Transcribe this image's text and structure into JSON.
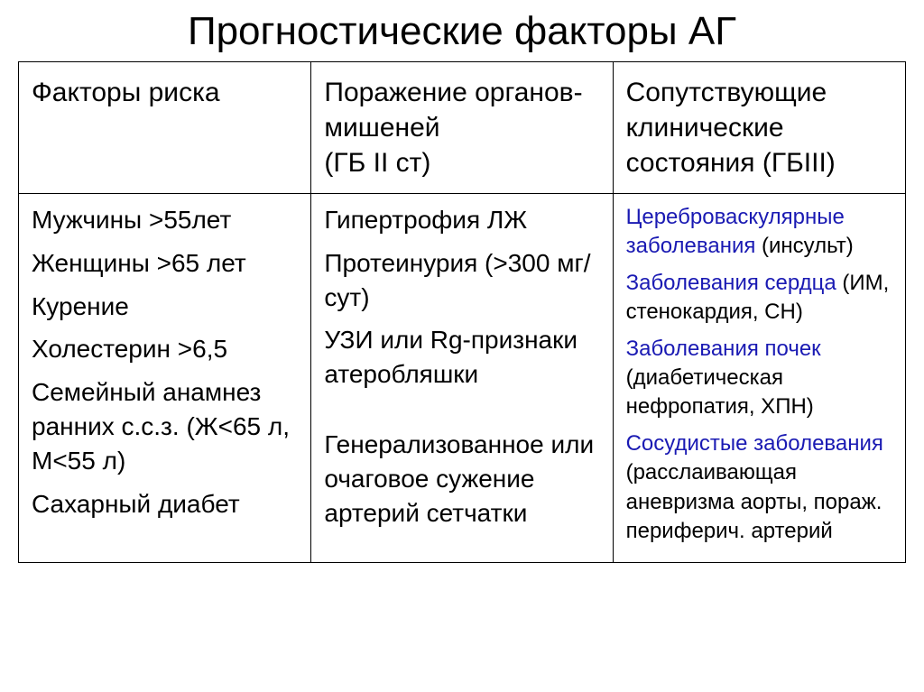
{
  "title": "Прогностические факторы АГ",
  "headers": {
    "c1": "Факторы риска",
    "c2": "Поражение органов-мишеней\n(ГБ II ст)",
    "c3": "Сопутствующие клинические состояния (ГБIII)"
  },
  "col1": {
    "items": [
      "Мужчины >55лет",
      "Женщины >65 лет",
      "Курение",
      "Холестерин >6,5",
      "Семейный анамнез ранних с.с.з. (Ж<65 л, М<55 л)",
      "Сахарный диабет"
    ]
  },
  "col2": {
    "items": [
      "Гипертрофия ЛЖ",
      "Протеинурия (>300 мг/сут)",
      "УЗИ или Rg-признаки атеробляшки",
      "",
      "Генерализованное или очаговое сужение артерий сетчатки"
    ]
  },
  "col3": {
    "items": [
      {
        "label": "Цереброваскулярные заболевания",
        "detail": " (инсульт)"
      },
      {
        "label": "Заболевания сердца",
        "detail": " (ИМ, стенокардия, СН)"
      },
      {
        "label": "Заболевания почек",
        "detail": " (диабетическая нефропатия, ХПН)"
      },
      {
        "label": "Сосудистые заболевания",
        "detail": " (расслаивающая аневризма аорты, пораж. периферич. артерий"
      }
    ]
  },
  "colors": {
    "highlight": "#1a1ab3",
    "text": "#000000",
    "background": "#ffffff",
    "border": "#000000"
  },
  "fontsizes": {
    "title": 44,
    "header": 30,
    "body": 28,
    "col3body": 24
  }
}
